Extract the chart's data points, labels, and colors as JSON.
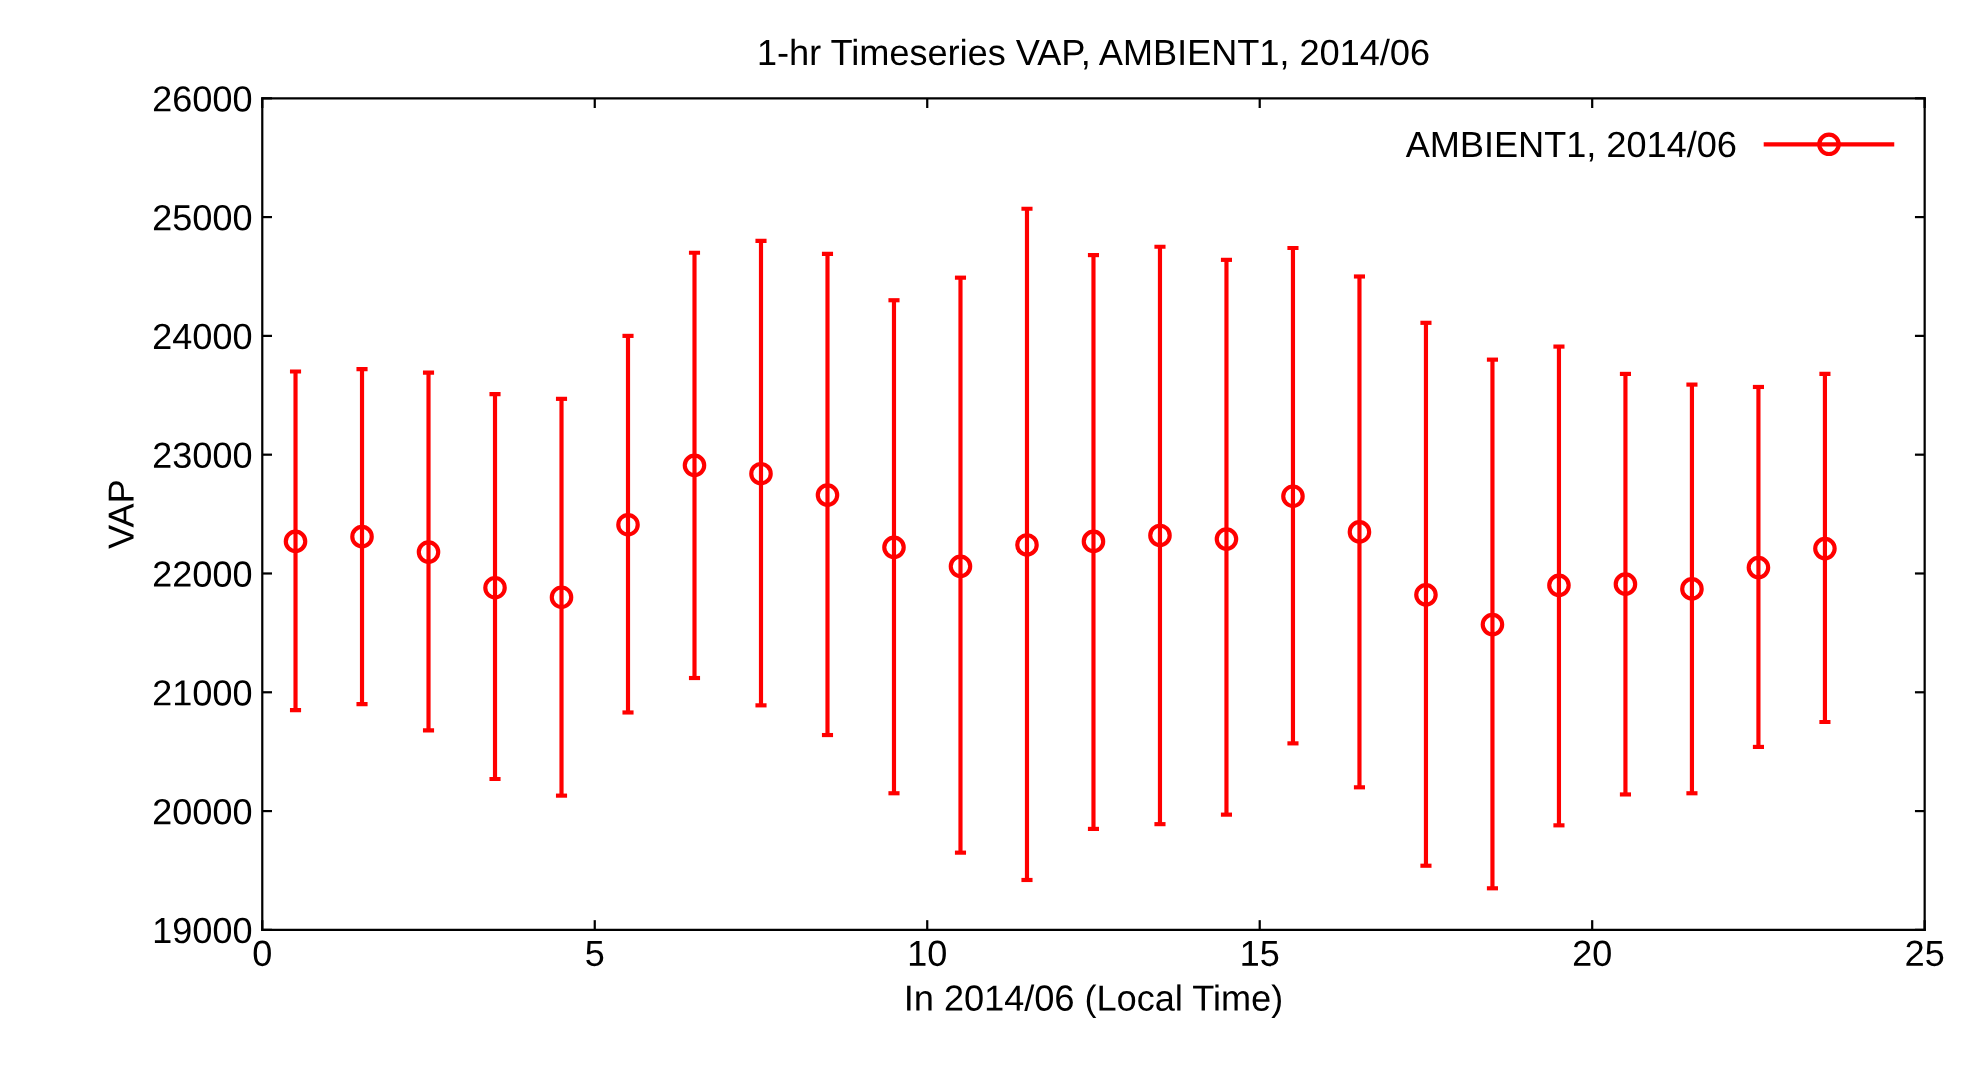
{
  "chart_data": {
    "type": "scatter",
    "title": "1-hr Timeseries VAP, AMBIENT1, 2014/06",
    "xlabel": "In 2014/06 (Local Time)",
    "ylabel": "VAP",
    "x": [
      0.5,
      1.5,
      2.5,
      3.5,
      4.5,
      5.5,
      6.5,
      7.5,
      8.5,
      9.5,
      10.5,
      11.5,
      12.5,
      13.5,
      14.5,
      15.5,
      16.5,
      17.5,
      18.5,
      19.5,
      20.5,
      21.5,
      22.5,
      23.5
    ],
    "series": [
      {
        "name": "AMBIENT1, 2014/06",
        "color": "#ff0000",
        "values": [
          22270,
          22310,
          22180,
          21880,
          21800,
          22410,
          22910,
          22840,
          22660,
          22220,
          22060,
          22240,
          22270,
          22320,
          22290,
          22650,
          22350,
          21820,
          21570,
          21900,
          21910,
          21870,
          22050,
          22210
        ],
        "errors": [
          [
            20850,
            23700
          ],
          [
            20900,
            23720
          ],
          [
            20680,
            23690
          ],
          [
            20270,
            23510
          ],
          [
            20130,
            23470
          ],
          [
            20830,
            24000
          ],
          [
            21120,
            24700
          ],
          [
            20890,
            24800
          ],
          [
            20640,
            24690
          ],
          [
            20150,
            24300
          ],
          [
            19650,
            24490
          ],
          [
            19420,
            25070
          ],
          [
            19850,
            24680
          ],
          [
            19890,
            24750
          ],
          [
            19970,
            24640
          ],
          [
            20570,
            24740
          ],
          [
            20200,
            24500
          ],
          [
            19540,
            24110
          ],
          [
            19350,
            23800
          ],
          [
            19880,
            23910
          ],
          [
            20140,
            23680
          ],
          [
            20150,
            23590
          ],
          [
            20540,
            23570
          ],
          [
            20750,
            23680
          ]
        ]
      }
    ],
    "xlim": [
      0,
      25
    ],
    "xticks": [
      0,
      5,
      10,
      15,
      20,
      25
    ],
    "ylim": [
      19000,
      26000
    ],
    "yticks": [
      19000,
      20000,
      21000,
      22000,
      23000,
      24000,
      25000,
      26000
    ],
    "marker": "circle",
    "grid": false,
    "legend": "top right"
  }
}
